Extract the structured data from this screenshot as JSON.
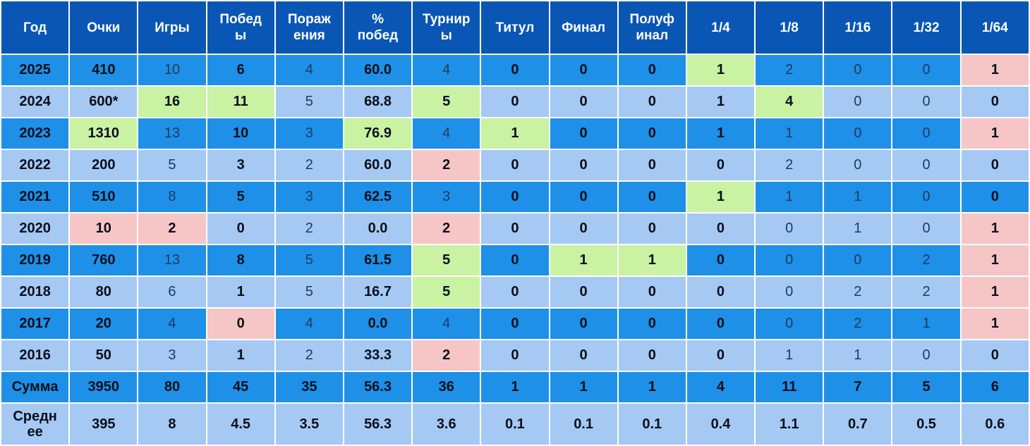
{
  "headers": [
    "Год",
    "Очки",
    "Игры",
    "Побед\nы",
    "Пораж\nения",
    "%\nпобед",
    "Турнир\nы",
    "Титул",
    "Финал",
    "Полуф\nинал",
    "1/4",
    "1/8",
    "1/16",
    "1/32",
    "1/64"
  ],
  "colors": {
    "header": "#0a56b4",
    "dark_row": "#1e90e8",
    "light_row": "#a5c9f3",
    "highlight_best": "#c9f2a2",
    "highlight_worst": "#f6c6c6"
  },
  "rows": [
    {
      "year": "2025",
      "cells": [
        "410",
        "10",
        "6",
        "4",
        "60.0",
        "4",
        "0",
        "0",
        "0",
        "1",
        "2",
        "0",
        "0",
        "1"
      ]
    },
    {
      "year": "2024",
      "cells": [
        "600*",
        "16",
        "11",
        "5",
        "68.8",
        "5",
        "0",
        "0",
        "0",
        "1",
        "4",
        "0",
        "0",
        "0"
      ]
    },
    {
      "year": "2023",
      "cells": [
        "1310",
        "13",
        "10",
        "3",
        "76.9",
        "4",
        "1",
        "0",
        "0",
        "1",
        "1",
        "0",
        "0",
        "1"
      ]
    },
    {
      "year": "2022",
      "cells": [
        "200",
        "5",
        "3",
        "2",
        "60.0",
        "2",
        "0",
        "0",
        "0",
        "0",
        "2",
        "0",
        "0",
        "0"
      ]
    },
    {
      "year": "2021",
      "cells": [
        "510",
        "8",
        "5",
        "3",
        "62.5",
        "3",
        "0",
        "0",
        "0",
        "1",
        "1",
        "1",
        "0",
        "0"
      ]
    },
    {
      "year": "2020",
      "cells": [
        "10",
        "2",
        "0",
        "2",
        "0.0",
        "2",
        "0",
        "0",
        "0",
        "0",
        "0",
        "1",
        "0",
        "1"
      ]
    },
    {
      "year": "2019",
      "cells": [
        "760",
        "13",
        "8",
        "5",
        "61.5",
        "5",
        "0",
        "1",
        "1",
        "0",
        "0",
        "0",
        "2",
        "1"
      ]
    },
    {
      "year": "2018",
      "cells": [
        "80",
        "6",
        "1",
        "5",
        "16.7",
        "5",
        "0",
        "0",
        "0",
        "0",
        "0",
        "2",
        "2",
        "1"
      ]
    },
    {
      "year": "2017",
      "cells": [
        "20",
        "4",
        "0",
        "4",
        "0.0",
        "4",
        "0",
        "0",
        "0",
        "0",
        "0",
        "2",
        "1",
        "1"
      ]
    },
    {
      "year": "2016",
      "cells": [
        "50",
        "3",
        "1",
        "2",
        "33.3",
        "2",
        "0",
        "0",
        "0",
        "0",
        "1",
        "1",
        "0",
        "0"
      ]
    },
    {
      "year": "Сумма",
      "cells": [
        "3950",
        "80",
        "45",
        "35",
        "56.3",
        "36",
        "1",
        "1",
        "1",
        "4",
        "11",
        "7",
        "5",
        "6"
      ]
    },
    {
      "year": "Средн\nее",
      "cells": [
        "395",
        "8",
        "4.5",
        "3.5",
        "56.3",
        "3.6",
        "0.1",
        "0.1",
        "0.1",
        "0.4",
        "1.1",
        "0.7",
        "0.5",
        "0.6"
      ]
    }
  ]
}
